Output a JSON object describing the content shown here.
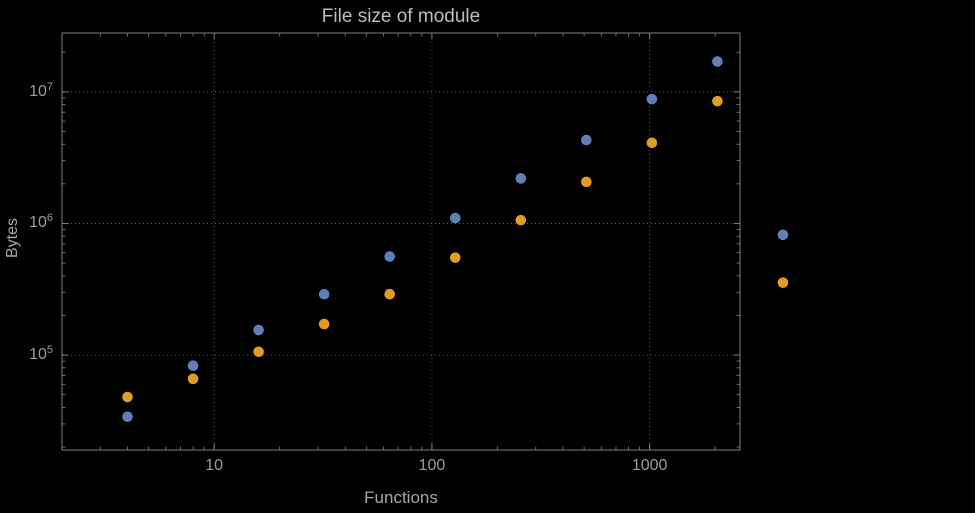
{
  "chart_data": {
    "type": "scatter",
    "title": "File size of module",
    "xlabel": "Functions",
    "ylabel": "Bytes",
    "xscale": "log",
    "yscale": "log",
    "xlim": [
      2,
      2600
    ],
    "ylim": [
      19000,
      28000000
    ],
    "grid": "dotted",
    "legend": "none",
    "x_ticks": [
      10,
      100,
      1000
    ],
    "y_ticks": [
      100000,
      1000000,
      10000000
    ],
    "x": [
      4,
      8,
      16,
      32,
      64,
      128,
      256,
      512,
      1024,
      2048,
      4096
    ],
    "series": [
      {
        "name": "blue",
        "color": "#5e81b5",
        "values": [
          34000,
          83000,
          155000,
          290000,
          560000,
          1100000,
          2200000,
          4300000,
          8800000,
          17000000,
          820000
        ]
      },
      {
        "name": "orange",
        "color": "#e19c24",
        "values": [
          48000,
          66000,
          106000,
          172000,
          290000,
          550000,
          1060000,
          2070000,
          4100000,
          8500000,
          355000
        ]
      }
    ]
  },
  "colors": {
    "background": "#000000",
    "frame": "#828282",
    "grid": "#5e5e5e",
    "tick_text": "#9c9c9c",
    "axis_label_text": "#a6a6a6",
    "title_text": "#bdbdbd",
    "series_blue": "#5e81b5",
    "series_orange": "#e19c24"
  }
}
